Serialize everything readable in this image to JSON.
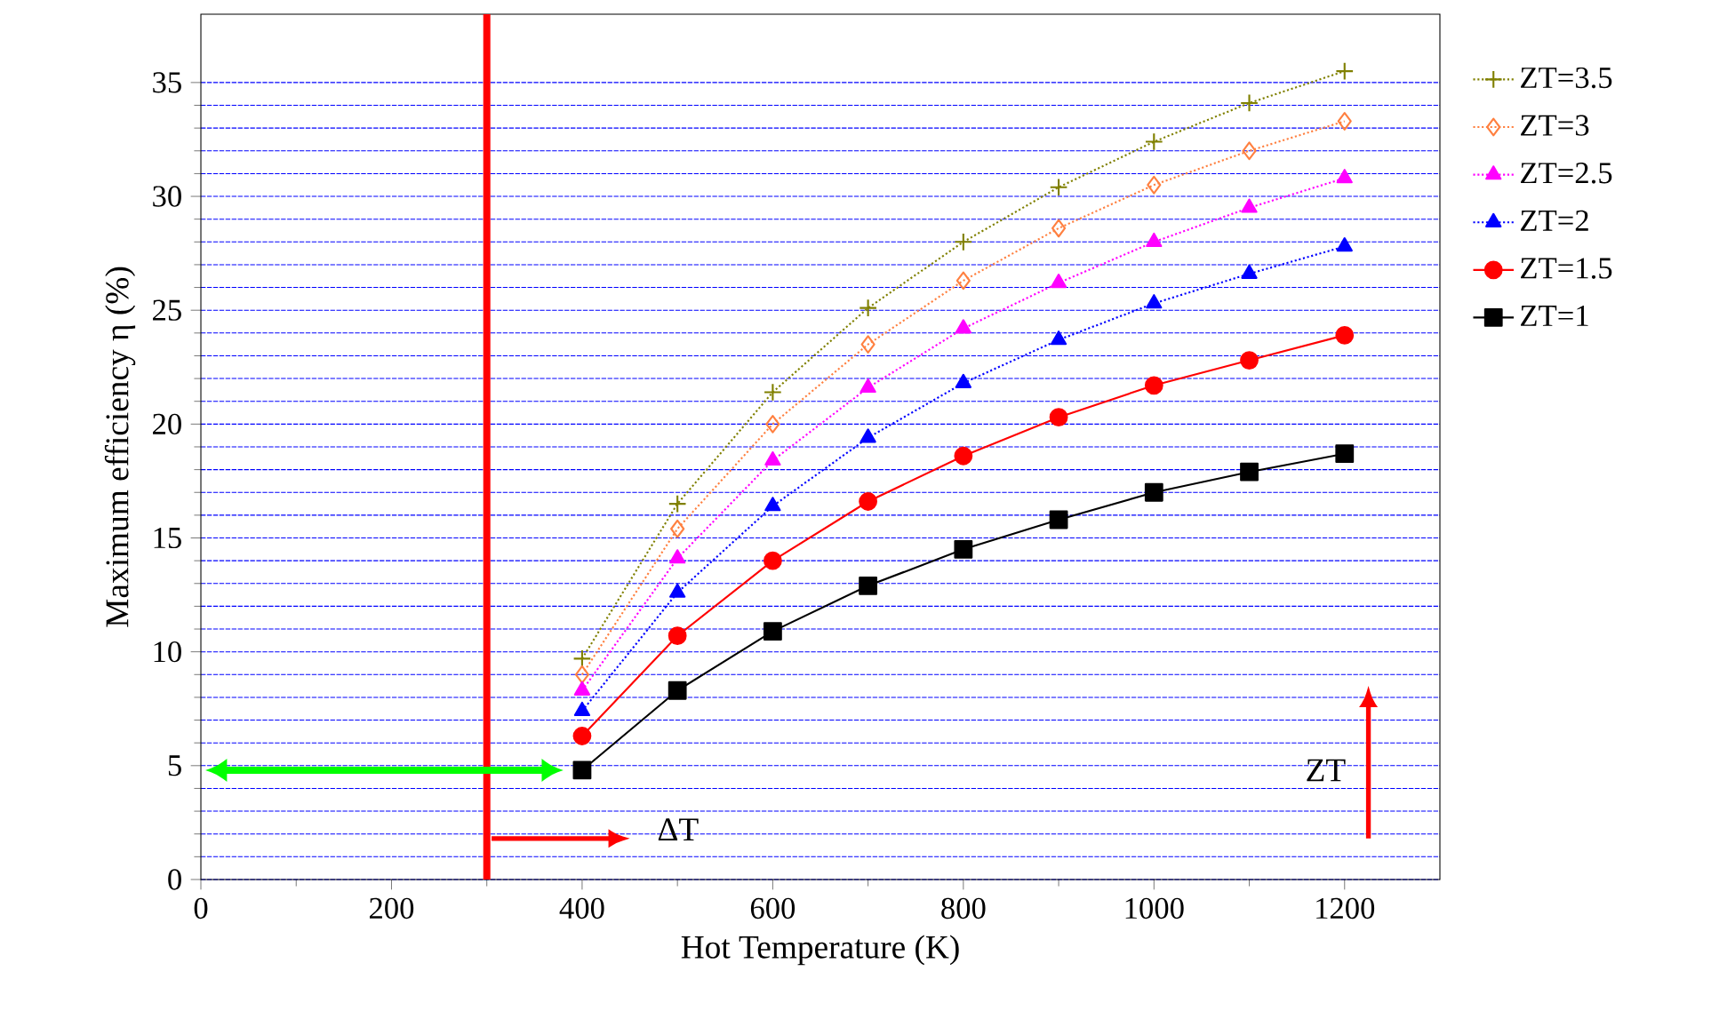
{
  "chart_data": {
    "type": "line",
    "xlabel": "Hot Temperature (K)",
    "ylabel": "Maximum efficiency η (%)",
    "x": [
      400,
      500,
      600,
      700,
      800,
      900,
      1000,
      1100,
      1200
    ],
    "xlim": [
      0,
      1300
    ],
    "xticks": [
      0,
      200,
      400,
      600,
      800,
      1000,
      1200
    ],
    "ylim": [
      0,
      38
    ],
    "yticks": [
      0,
      5,
      10,
      15,
      20,
      25,
      30,
      35
    ],
    "grid": "y",
    "legend": "right",
    "series": [
      {
        "name": "ZT=3.5",
        "color": "#808000",
        "marker": "cross",
        "line_style": "dotted",
        "values": [
          9.7,
          16.5,
          21.4,
          25.1,
          28.0,
          30.4,
          32.4,
          34.1,
          35.5
        ]
      },
      {
        "name": "ZT=3",
        "color": "#ff8040",
        "marker": "diamond",
        "line_style": "dotted",
        "values": [
          9.0,
          15.4,
          20.0,
          23.5,
          26.3,
          28.6,
          30.5,
          32.0,
          33.3
        ]
      },
      {
        "name": "ZT=2.5",
        "color": "#ff00ff",
        "marker": "triangle",
        "line_style": "dotted",
        "values": [
          8.3,
          14.1,
          18.4,
          21.6,
          24.2,
          26.2,
          28.0,
          29.5,
          30.8
        ]
      },
      {
        "name": "ZT=2",
        "color": "#0000ff",
        "marker": "triangle",
        "line_style": "dotted",
        "values": [
          7.4,
          12.6,
          16.4,
          19.4,
          21.8,
          23.7,
          25.3,
          26.6,
          27.8
        ]
      },
      {
        "name": "ZT=1.5",
        "color": "#ff0000",
        "marker": "circle",
        "line_style": "solid",
        "values": [
          6.3,
          10.7,
          14.0,
          16.6,
          18.6,
          20.3,
          21.7,
          22.8,
          23.9
        ]
      },
      {
        "name": "ZT=1",
        "color": "#000000",
        "marker": "square",
        "line_style": "solid",
        "values": [
          4.8,
          8.3,
          10.9,
          12.9,
          14.5,
          15.8,
          17.0,
          17.9,
          18.7
        ]
      }
    ],
    "ref_lines": [
      {
        "axis": "x",
        "value": 300,
        "color": "#ff0000"
      }
    ],
    "annotations": [
      "ΔT",
      "ZT"
    ]
  }
}
